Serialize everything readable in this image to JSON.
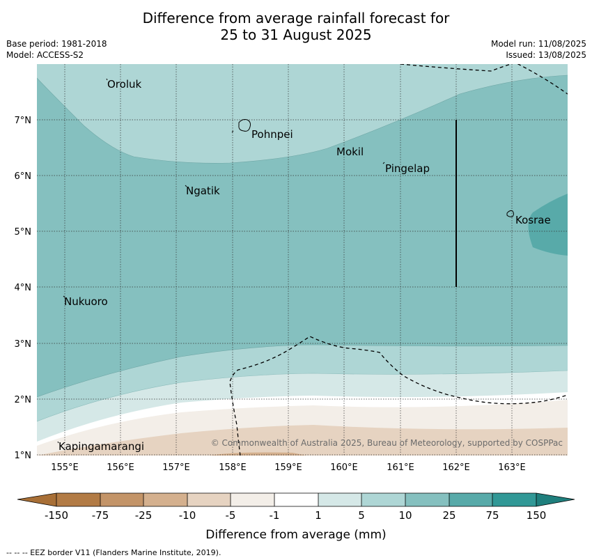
{
  "title": {
    "line1": "Difference from average rainfall forecast for",
    "line2": "25 to 31 August 2025"
  },
  "meta_left": {
    "base_period": "Base period: 1981-2018",
    "model": "Model: ACCESS-S2"
  },
  "meta_right": {
    "model_run": "Model run: 11/08/2025",
    "issued": "Issued: 13/08/2025"
  },
  "map": {
    "lon_ticks": [
      "155°E",
      "156°E",
      "157°E",
      "158°E",
      "159°E",
      "160°E",
      "161°E",
      "162°E",
      "163°E"
    ],
    "lat_ticks": [
      "7°N",
      "6°N",
      "5°N",
      "4°N",
      "3°N",
      "2°N",
      "1°N"
    ],
    "places": [
      "Oroluk",
      "Pohnpei",
      "Mokil",
      "Pingelap",
      "Ngatik",
      "Kosrae",
      "Nukuoro",
      "Kapingamarangi"
    ],
    "copyright": "© Commonwealth of Australia 2025, Bureau of Meteorology, supported by COSPPac"
  },
  "colorbar": {
    "labels": [
      "-150",
      "-75",
      "-25",
      "-10",
      "-5",
      "-1",
      "1",
      "5",
      "10",
      "25",
      "75",
      "150"
    ],
    "colors": [
      "#a86f36",
      "#b27b45",
      "#c39468",
      "#d4b08e",
      "#e6d3c1",
      "#f3eee8",
      "#ffffff",
      "#d5e8e7",
      "#aed6d5",
      "#85c0bf",
      "#58aaa9",
      "#319896",
      "#1f7f7d"
    ],
    "title": "Difference from average (mm)"
  },
  "footer": {
    "legend": "-- -- -- EEZ border V11 (Flanders Marine Institute, 2019)."
  }
}
